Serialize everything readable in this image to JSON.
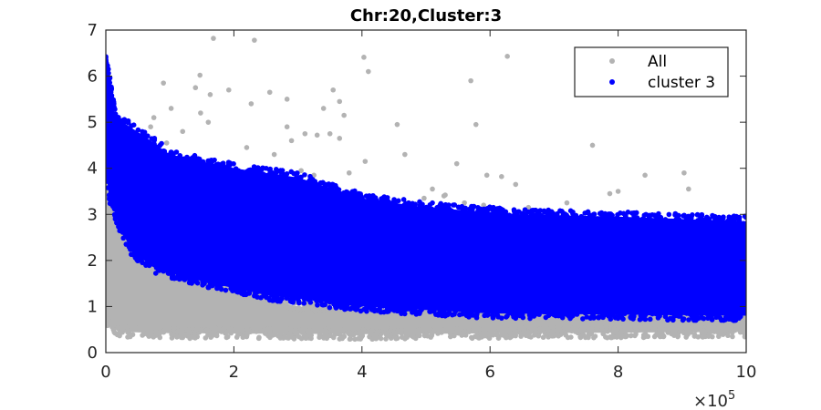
{
  "chart_data": {
    "type": "scatter",
    "title": "Chr:20,Cluster:3",
    "xlabel": "",
    "ylabel": "",
    "xlim": [
      0,
      1000000
    ],
    "ylim": [
      0,
      7
    ],
    "x_ticks": [
      0,
      200000,
      400000,
      600000,
      800000,
      1000000
    ],
    "x_tick_labels": [
      "0",
      "2",
      "4",
      "6",
      "8",
      "10"
    ],
    "x_exponent_label": "×10",
    "x_exponent": "5",
    "y_ticks": [
      0,
      1,
      2,
      3,
      4,
      5,
      6,
      7
    ],
    "y_tick_labels": [
      "0",
      "1",
      "2",
      "3",
      "4",
      "5",
      "6",
      "7"
    ],
    "grid": false,
    "legend_position": "top-right",
    "series": [
      {
        "name": "All",
        "color": "#b3b3b3",
        "marker": "dot",
        "band_lower": [
          [
            0,
            0.8
          ],
          [
            5000,
            0.6
          ],
          [
            20000,
            0.45
          ],
          [
            100000,
            0.42
          ],
          [
            400000,
            0.4
          ],
          [
            1000000,
            0.45
          ]
        ],
        "band_upper": [
          [
            0,
            4.4
          ],
          [
            5000,
            3.6
          ],
          [
            20000,
            2.6
          ],
          [
            60000,
            2.0
          ],
          [
            150000,
            1.5
          ],
          [
            300000,
            1.0
          ],
          [
            600000,
            0.9
          ],
          [
            1000000,
            0.85
          ]
        ],
        "outliers": [
          [
            168000,
            6.82
          ],
          [
            232000,
            6.78
          ],
          [
            403000,
            6.41
          ],
          [
            410000,
            6.1
          ],
          [
            627000,
            6.43
          ],
          [
            147000,
            6.02
          ],
          [
            140000,
            5.75
          ],
          [
            163000,
            5.6
          ],
          [
            192000,
            5.7
          ],
          [
            256000,
            5.65
          ],
          [
            355000,
            5.7
          ],
          [
            365000,
            5.45
          ],
          [
            227000,
            5.4
          ],
          [
            283000,
            5.5
          ],
          [
            90000,
            5.85
          ],
          [
            102000,
            5.3
          ],
          [
            148000,
            5.2
          ],
          [
            160000,
            5.0
          ],
          [
            340000,
            5.3
          ],
          [
            372000,
            5.15
          ],
          [
            570000,
            5.9
          ],
          [
            578000,
            4.95
          ],
          [
            455000,
            4.95
          ],
          [
            283000,
            4.9
          ],
          [
            311000,
            4.75
          ],
          [
            330000,
            4.72
          ],
          [
            350000,
            4.75
          ],
          [
            95000,
            4.55
          ],
          [
            290000,
            4.6
          ],
          [
            365000,
            4.65
          ],
          [
            467000,
            4.3
          ],
          [
            405000,
            4.15
          ],
          [
            548000,
            4.1
          ],
          [
            595000,
            3.85
          ],
          [
            618000,
            3.82
          ],
          [
            640000,
            3.65
          ],
          [
            760000,
            4.5
          ],
          [
            903000,
            3.9
          ],
          [
            910000,
            3.55
          ],
          [
            842000,
            3.85
          ],
          [
            510000,
            3.55
          ],
          [
            530000,
            3.42
          ],
          [
            497000,
            3.35
          ],
          [
            528000,
            3.4
          ],
          [
            560000,
            3.25
          ],
          [
            590000,
            3.2
          ],
          [
            787000,
            3.45
          ],
          [
            800000,
            3.5
          ],
          [
            720000,
            3.25
          ],
          [
            660000,
            3.15
          ],
          [
            380000,
            3.9
          ],
          [
            325000,
            3.85
          ],
          [
            305000,
            3.95
          ],
          [
            340000,
            3.55
          ],
          [
            263000,
            4.3
          ],
          [
            220000,
            4.45
          ],
          [
            75000,
            5.1
          ],
          [
            70000,
            4.9
          ],
          [
            120000,
            4.8
          ]
        ]
      },
      {
        "name": "cluster 3",
        "color": "#0000ff",
        "marker": "dot",
        "band_lower": [
          [
            0,
            4.0
          ],
          [
            5000,
            3.4
          ],
          [
            20000,
            2.8
          ],
          [
            40000,
            2.2
          ],
          [
            80000,
            1.8
          ],
          [
            150000,
            1.55
          ],
          [
            250000,
            1.25
          ],
          [
            400000,
            1.0
          ],
          [
            600000,
            0.85
          ],
          [
            1000000,
            0.8
          ]
        ],
        "band_upper": [
          [
            0,
            6.35
          ],
          [
            5000,
            6.0
          ],
          [
            15000,
            5.1
          ],
          [
            60000,
            4.7
          ],
          [
            100000,
            4.3
          ],
          [
            200000,
            4.0
          ],
          [
            300000,
            3.8
          ],
          [
            400000,
            3.35
          ],
          [
            500000,
            3.15
          ],
          [
            650000,
            3.0
          ],
          [
            800000,
            2.95
          ],
          [
            1000000,
            2.85
          ]
        ]
      }
    ]
  }
}
